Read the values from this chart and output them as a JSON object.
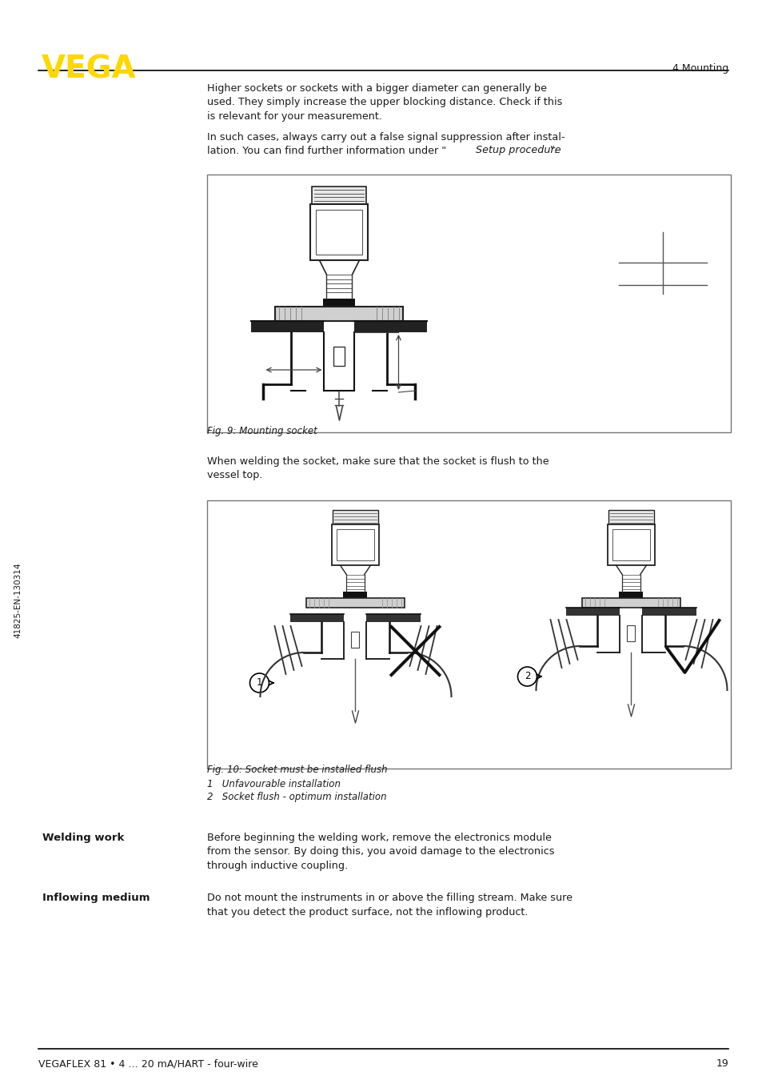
{
  "page_number": "19",
  "footer_text": "VEGAFLEX 81 • 4 … 20 mA/HART - four-wire",
  "header_section": "4 Mounting",
  "vega_color": "#FFD700",
  "text_color": "#1a1a1a",
  "bg_color": "#FFFFFF",
  "para1": "Higher sockets or sockets with a bigger diameter can generally be\nused. They simply increase the upper blocking distance. Check if this\nis relevant for your measurement.",
  "para2_part1": "In such cases, always carry out a false signal suppression after instal-\nlation. You can find further information under \"",
  "para2_italic": "Setup procedure",
  "para2_end": "\".",
  "fig9_caption": "Fig. 9: Mounting socket",
  "fig10_caption": "Fig. 10: Socket must be installed flush",
  "fig10_item1": "1   Unfavourable installation",
  "fig10_item2": "2   Socket flush - optimum installation",
  "welding_title": "Welding work",
  "welding_text": "Before beginning the welding work, remove the electronics module\nfrom the sensor. By doing this, you avoid damage to the electronics\nthrough inductive coupling.",
  "inflowing_title": "Inflowing medium",
  "inflowing_text": "Do not mount the instruments in or above the filling stream. Make sure\nthat you detect the product surface, not the inflowing product.",
  "sidebar_text": "41825-EN-130314",
  "lm": 0.05,
  "rm": 0.955,
  "cl": 0.272,
  "cr": 0.958
}
